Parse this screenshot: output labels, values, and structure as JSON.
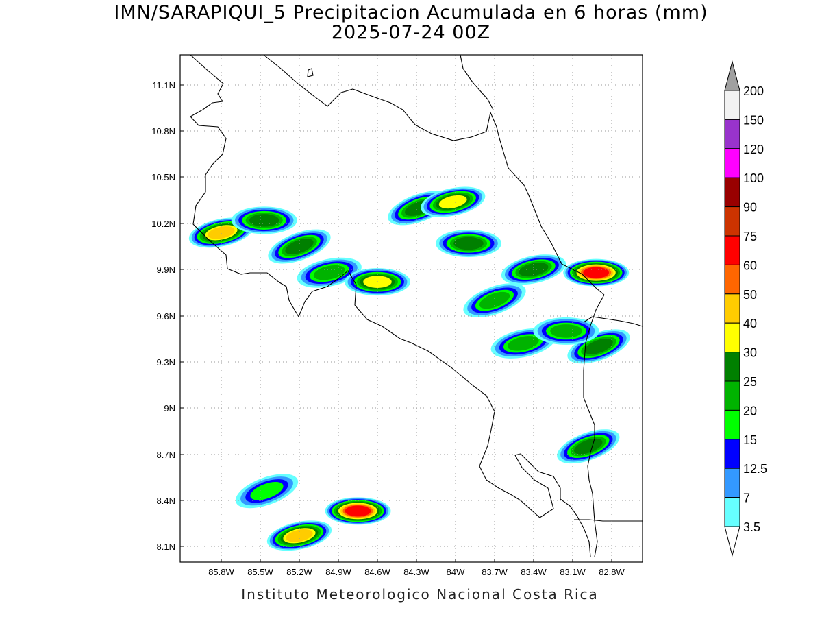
{
  "title": {
    "line1": "IMN/SARAPIQUI_5 Precipitacion Acumulada en 6 horas (mm)",
    "line2": "2025-07-24 00Z"
  },
  "footer": "Instituto Meteorologico Nacional Costa Rica",
  "map": {
    "lon_range": [
      -86.0,
      -83.0
    ],
    "lat_range": [
      8.0,
      11.2
    ],
    "grid": "dotted",
    "lat_labels": [
      "11.1N",
      "10.8N",
      "10.5N",
      "10.2N",
      "9.9N",
      "9.6N",
      "9.3N",
      "9N",
      "8.7N",
      "8.4N",
      "8.1N"
    ],
    "lon_labels": [
      "85.8W",
      "85.5W",
      "85.2W",
      "84.9W",
      "84.6W",
      "84.3W",
      "84W",
      "83.7W",
      "83.4W",
      "83.1W",
      "82.8W"
    ]
  },
  "colorbar": {
    "levels": [
      "200",
      "150",
      "120",
      "100",
      "90",
      "75",
      "60",
      "50",
      "40",
      "30",
      "25",
      "20",
      "15",
      "12.5",
      "7",
      "3.5"
    ],
    "colors": [
      "#f2f2f2",
      "#9933cc",
      "#ff00ff",
      "#990000",
      "#cc3300",
      "#ff0000",
      "#ff6600",
      "#ffcc00",
      "#ffff00",
      "#008000",
      "#00b300",
      "#00ff00",
      "#0000ff",
      "#3399ff",
      "#66ffff"
    ],
    "over_color": "#a0a0a0",
    "under_color": "#ffffff"
  },
  "chart_data": {
    "type": "heatmap",
    "title": "IMN/SARAPIQUI_5 Precipitacion Acumulada en 6 horas (mm)",
    "subtitle": "2025-07-24 00Z",
    "units": "mm",
    "cells": [
      {
        "lon": -85.8,
        "lat": 10.14,
        "value": 40
      },
      {
        "lon": -85.47,
        "lat": 10.22,
        "value": 25
      },
      {
        "lon": -85.2,
        "lat": 10.05,
        "value": 25
      },
      {
        "lon": -84.97,
        "lat": 9.88,
        "value": 20
      },
      {
        "lon": -84.6,
        "lat": 9.82,
        "value": 30
      },
      {
        "lon": -84.28,
        "lat": 10.3,
        "value": 25
      },
      {
        "lon": -84.02,
        "lat": 10.34,
        "value": 30
      },
      {
        "lon": -83.9,
        "lat": 10.07,
        "value": 25
      },
      {
        "lon": -83.7,
        "lat": 9.7,
        "value": 20
      },
      {
        "lon": -83.4,
        "lat": 9.9,
        "value": 25
      },
      {
        "lon": -82.92,
        "lat": 9.88,
        "value": 60
      },
      {
        "lon": -82.9,
        "lat": 9.4,
        "value": 25
      },
      {
        "lon": -83.48,
        "lat": 9.42,
        "value": 20
      },
      {
        "lon": -83.15,
        "lat": 9.5,
        "value": 20
      },
      {
        "lon": -82.98,
        "lat": 8.75,
        "value": 25
      },
      {
        "lon": -85.2,
        "lat": 8.17,
        "value": 40
      },
      {
        "lon": -84.75,
        "lat": 8.33,
        "value": 60
      },
      {
        "lon": -85.45,
        "lat": 8.46,
        "value": 15
      }
    ]
  }
}
